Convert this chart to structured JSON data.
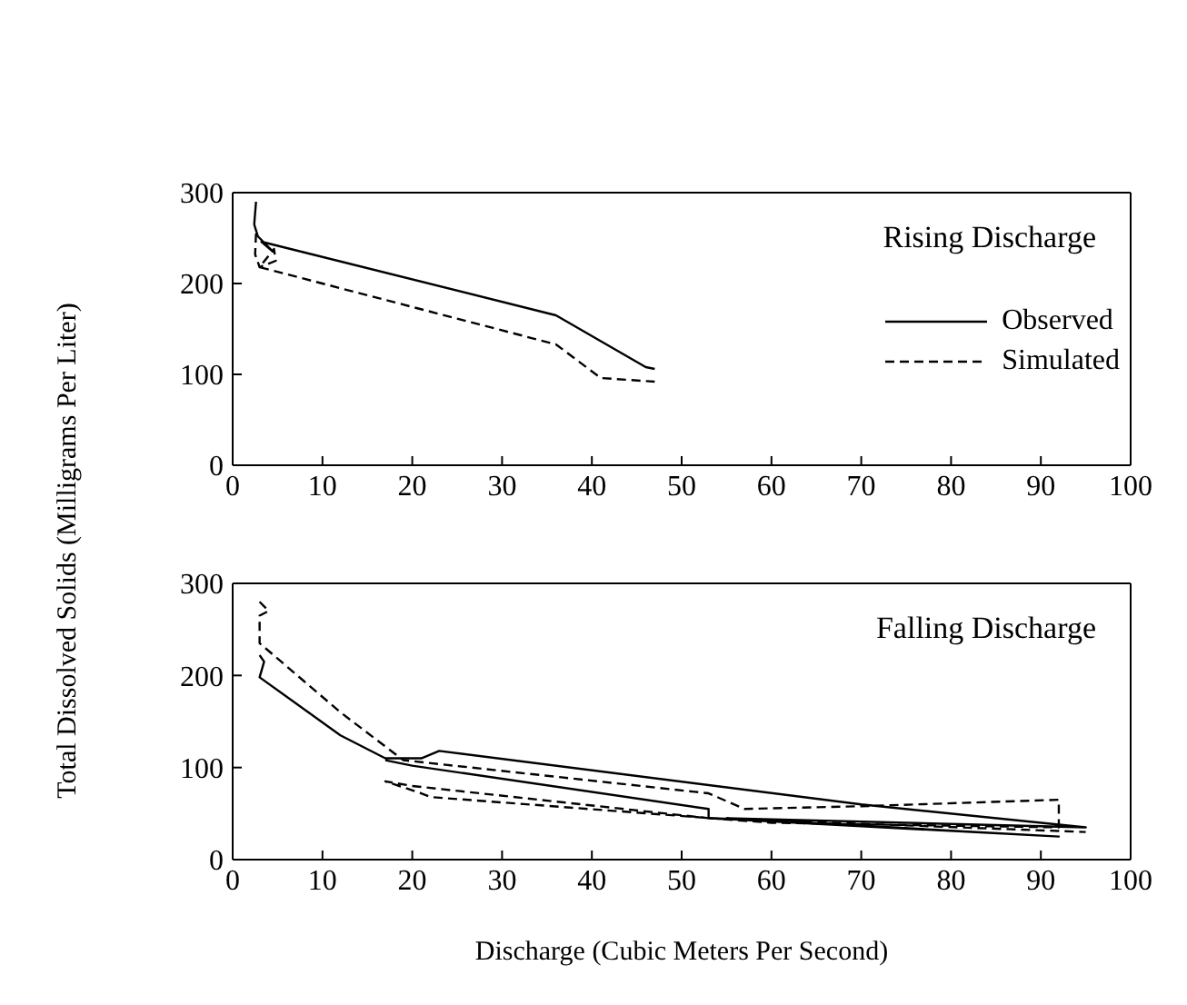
{
  "chart_data": [
    {
      "type": "line",
      "ylabel": "Total Dissolved Solids (Milligrams Per Liter)",
      "xlim": [
        0,
        100
      ],
      "ylim": [
        0,
        300
      ],
      "xticks": [
        0,
        10,
        20,
        30,
        40,
        50,
        60,
        70,
        80,
        90,
        100
      ],
      "yticks": [
        0,
        100,
        200,
        300
      ],
      "legend": "right",
      "annotations": [
        "Rising Discharge"
      ],
      "series": [
        {
          "name": "Observed",
          "color": "#000000",
          "line_style": "solid",
          "x": [
            2.6,
            2.4,
            2.8,
            4.5,
            3.2,
            36,
            46,
            47
          ],
          "values": [
            290,
            265,
            252,
            235,
            246,
            165,
            108,
            106
          ]
        },
        {
          "name": "Simulated",
          "color": "#000000",
          "line_style": "dashed",
          "x": [
            2.6,
            2.5,
            3,
            4.8,
            4.6,
            3,
            36,
            41,
            47
          ],
          "values": [
            255,
            232,
            218,
            225,
            238,
            218,
            133,
            96,
            92
          ]
        }
      ]
    },
    {
      "type": "line",
      "xlabel": "Discharge (Cubic Meters Per Second)",
      "xlim": [
        0,
        100
      ],
      "ylim": [
        0,
        300
      ],
      "xticks": [
        0,
        10,
        20,
        30,
        40,
        50,
        60,
        70,
        80,
        90,
        100
      ],
      "yticks": [
        0,
        100,
        200,
        300
      ],
      "legend": false,
      "annotations": [
        "Falling Discharge"
      ],
      "series": [
        {
          "color": "#000000",
          "line_style": "solid",
          "x": [
            3,
            3.5,
            3,
            12,
            17,
            21,
            23,
            70,
            95,
            55,
            92,
            53,
            53,
            20,
            17
          ],
          "values": [
            222,
            215,
            198,
            135,
            110,
            110,
            118,
            60,
            35,
            45,
            25,
            45,
            55,
            102,
            108
          ]
        },
        {
          "color": "#000000",
          "line_style": "dashed",
          "x": [
            3,
            4,
            3,
            3,
            12,
            19,
            53,
            57,
            70,
            92,
            92,
            60,
            22,
            21,
            17,
            20,
            53,
            95
          ],
          "values": [
            280,
            270,
            265,
            235,
            160,
            108,
            72,
            55,
            58,
            65,
            35,
            40,
            68,
            72,
            85,
            80,
            45,
            30
          ]
        }
      ]
    }
  ]
}
